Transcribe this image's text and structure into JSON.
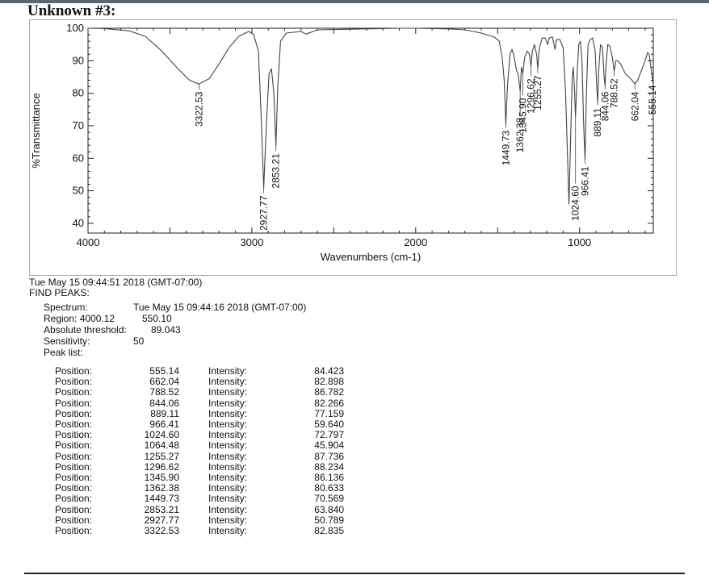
{
  "title": "Unknown #3:",
  "chart_data": {
    "type": "line",
    "xlabel": "Wavenumbers (cm-1)",
    "ylabel": "%Transmittance",
    "xlim": [
      4000,
      550
    ],
    "ylim": [
      37,
      100
    ],
    "x_reversed": true,
    "xticks": [
      4000,
      3000,
      2000,
      1000
    ],
    "yticks": [
      40,
      50,
      60,
      70,
      80,
      90,
      100
    ],
    "grid": false,
    "series": [
      {
        "points": [
          [
            4000,
            100
          ],
          [
            3900,
            99.9
          ],
          [
            3750,
            99.2
          ],
          [
            3650,
            97.5
          ],
          [
            3550,
            93
          ],
          [
            3450,
            87.5
          ],
          [
            3380,
            84
          ],
          [
            3322.53,
            82.835
          ],
          [
            3260,
            84.5
          ],
          [
            3200,
            89
          ],
          [
            3140,
            94
          ],
          [
            3080,
            97.5
          ],
          [
            3020,
            99
          ],
          [
            2990,
            98.2
          ],
          [
            2960,
            93
          ],
          [
            2945,
            75
          ],
          [
            2927.77,
            50.789
          ],
          [
            2912,
            70
          ],
          [
            2895,
            86
          ],
          [
            2880,
            87.5
          ],
          [
            2866,
            80
          ],
          [
            2853.21,
            63.84
          ],
          [
            2842,
            82
          ],
          [
            2825,
            96
          ],
          [
            2790,
            98.5
          ],
          [
            2700,
            99
          ],
          [
            2670,
            98.2
          ],
          [
            2600,
            99.5
          ],
          [
            2400,
            99.7
          ],
          [
            2300,
            99.8
          ],
          [
            2200,
            99.9
          ],
          [
            2100,
            100
          ],
          [
            2000,
            100
          ],
          [
            1900,
            99.9
          ],
          [
            1800,
            99.8
          ],
          [
            1700,
            99.5
          ],
          [
            1600,
            98.5
          ],
          [
            1520,
            97.3
          ],
          [
            1490,
            96
          ],
          [
            1472,
            91
          ],
          [
            1460,
            84
          ],
          [
            1449.73,
            70.569
          ],
          [
            1440,
            82
          ],
          [
            1425,
            92
          ],
          [
            1412,
            93.5
          ],
          [
            1400,
            91.5
          ],
          [
            1385,
            87
          ],
          [
            1375,
            86
          ],
          [
            1362.38,
            80.633
          ],
          [
            1355,
            88
          ],
          [
            1345.9,
            86.136
          ],
          [
            1335,
            91
          ],
          [
            1320,
            93
          ],
          [
            1305,
            92
          ],
          [
            1296.62,
            88.234
          ],
          [
            1288,
            93
          ],
          [
            1275,
            95
          ],
          [
            1262,
            92
          ],
          [
            1255.27,
            87.736
          ],
          [
            1245,
            94
          ],
          [
            1228,
            97
          ],
          [
            1210,
            97
          ],
          [
            1195,
            95
          ],
          [
            1185,
            97
          ],
          [
            1165,
            97.3
          ],
          [
            1150,
            93.5
          ],
          [
            1140,
            96.5
          ],
          [
            1120,
            96.5
          ],
          [
            1100,
            94
          ],
          [
            1085,
            80
          ],
          [
            1072,
            58
          ],
          [
            1064.48,
            45.904
          ],
          [
            1055,
            65
          ],
          [
            1045,
            85
          ],
          [
            1038,
            88
          ],
          [
            1030,
            80
          ],
          [
            1024.6,
            72.797
          ],
          [
            1015,
            86
          ],
          [
            1005,
            95
          ],
          [
            995,
            96
          ],
          [
            985,
            90
          ],
          [
            975,
            70
          ],
          [
            966.41,
            59.64
          ],
          [
            958,
            80
          ],
          [
            948,
            95
          ],
          [
            935,
            96.5
          ],
          [
            920,
            97
          ],
          [
            905,
            93
          ],
          [
            895,
            82
          ],
          [
            889.11,
            77.159
          ],
          [
            882,
            88
          ],
          [
            872,
            95
          ],
          [
            860,
            94
          ],
          [
            850,
            85
          ],
          [
            844.06,
            82.266
          ],
          [
            838,
            89
          ],
          [
            828,
            95
          ],
          [
            815,
            94.5
          ],
          [
            800,
            91
          ],
          [
            788.52,
            86.782
          ],
          [
            778,
            90
          ],
          [
            768,
            90
          ],
          [
            750,
            89
          ],
          [
            720,
            86
          ],
          [
            700,
            85
          ],
          [
            680,
            84
          ],
          [
            662.04,
            82.898
          ],
          [
            645,
            84
          ],
          [
            630,
            86
          ],
          [
            615,
            88
          ],
          [
            600,
            90
          ],
          [
            585,
            92.5
          ],
          [
            575,
            92
          ],
          [
            565,
            88
          ],
          [
            555.14,
            84.423
          ],
          [
            550,
            85.5
          ]
        ]
      }
    ],
    "peak_labels": [
      {
        "x": 3322.53,
        "y": 82.835,
        "label": "3322.53",
        "text_y": 81
      },
      {
        "x": 2927.77,
        "y": 50.789,
        "label": "2927.77",
        "text_y": 49
      },
      {
        "x": 2853.21,
        "y": 63.84,
        "label": "2853.21",
        "text_y": 62
      },
      {
        "x": 1449.73,
        "y": 70.569,
        "label": "1449.73",
        "text_y": 69
      },
      {
        "x": 1362.38,
        "y": 80.633,
        "label": "1362.38",
        "text_y": 73
      },
      {
        "x": 1345.9,
        "y": 86.136,
        "label": "1345.90",
        "text_y": 79
      },
      {
        "x": 1296.62,
        "y": 88.234,
        "label": "1296.62",
        "text_y": 85
      },
      {
        "x": 1255.27,
        "y": 87.736,
        "label": "1255.27",
        "text_y": 86
      },
      {
        "x": 1024.6,
        "y": 72.797,
        "label": "1024.60",
        "text_y": 52
      },
      {
        "x": 966.41,
        "y": 59.64,
        "label": "966.41",
        "text_y": 58
      },
      {
        "x": 889.11,
        "y": 77.159,
        "label": "889.11",
        "text_y": 76
      },
      {
        "x": 844.06,
        "y": 82.266,
        "label": "844.06",
        "text_y": 81
      },
      {
        "x": 788.52,
        "y": 86.782,
        "label": "788.52",
        "text_y": 85
      },
      {
        "x": 662.04,
        "y": 82.898,
        "label": "662.04",
        "text_y": 81
      },
      {
        "x": 555.14,
        "y": 84.423,
        "label": "555.14",
        "text_y": 83
      }
    ]
  },
  "report": {
    "header": "Tue May 15 09:44:51 2018 (GMT-07:00)",
    "find_peaks": "FIND PEAKS:",
    "spectrum_label": "Spectrum:",
    "spectrum_value": "Tue May 15 09:44:16 2018 (GMT-07:00)",
    "region_label": "Region: 4000.12",
    "region_value": "550.10",
    "threshold_label": "Absolute threshold:",
    "threshold_value": "89.043",
    "sensitivity_label": "Sensitivity:",
    "sensitivity_value": "50",
    "peak_list_label": "Peak list:",
    "peaks": [
      {
        "position_label": "Position:",
        "position": "555.14",
        "intensity_label": "Intensity:",
        "intensity": "84.423"
      },
      {
        "position_label": "Position:",
        "position": "662.04",
        "intensity_label": "Intensity:",
        "intensity": "82.898"
      },
      {
        "position_label": "Position:",
        "position": "788.52",
        "intensity_label": "Intensity:",
        "intensity": "86.782"
      },
      {
        "position_label": "Position:",
        "position": "844.06",
        "intensity_label": "Intensity:",
        "intensity": "82.266"
      },
      {
        "position_label": "Position:",
        "position": "889.11",
        "intensity_label": "Intensity:",
        "intensity": "77.159"
      },
      {
        "position_label": "Position:",
        "position": "966.41",
        "intensity_label": "Intensity:",
        "intensity": "59.640"
      },
      {
        "position_label": "Position:",
        "position": "1024.60",
        "intensity_label": "Intensity:",
        "intensity": "72.797"
      },
      {
        "position_label": "Position:",
        "position": "1064.48",
        "intensity_label": "Intensity:",
        "intensity": "45.904"
      },
      {
        "position_label": "Position:",
        "position": "1255.27",
        "intensity_label": "Intensity:",
        "intensity": "87.736"
      },
      {
        "position_label": "Position:",
        "position": "1296.62",
        "intensity_label": "Intensity:",
        "intensity": "88.234"
      },
      {
        "position_label": "Position:",
        "position": "1345.90",
        "intensity_label": "Intensity:",
        "intensity": "86.136"
      },
      {
        "position_label": "Position:",
        "position": "1362.38",
        "intensity_label": "Intensity:",
        "intensity": "80.633"
      },
      {
        "position_label": "Position:",
        "position": "1449.73",
        "intensity_label": "Intensity:",
        "intensity": "70.569"
      },
      {
        "position_label": "Position:",
        "position": "2853.21",
        "intensity_label": "Intensity:",
        "intensity": "63.840"
      },
      {
        "position_label": "Position:",
        "position": "2927.77",
        "intensity_label": "Intensity:",
        "intensity": "50.789"
      },
      {
        "position_label": "Position:",
        "position": "3322.53",
        "intensity_label": "Intensity:",
        "intensity": "82.835"
      }
    ]
  }
}
